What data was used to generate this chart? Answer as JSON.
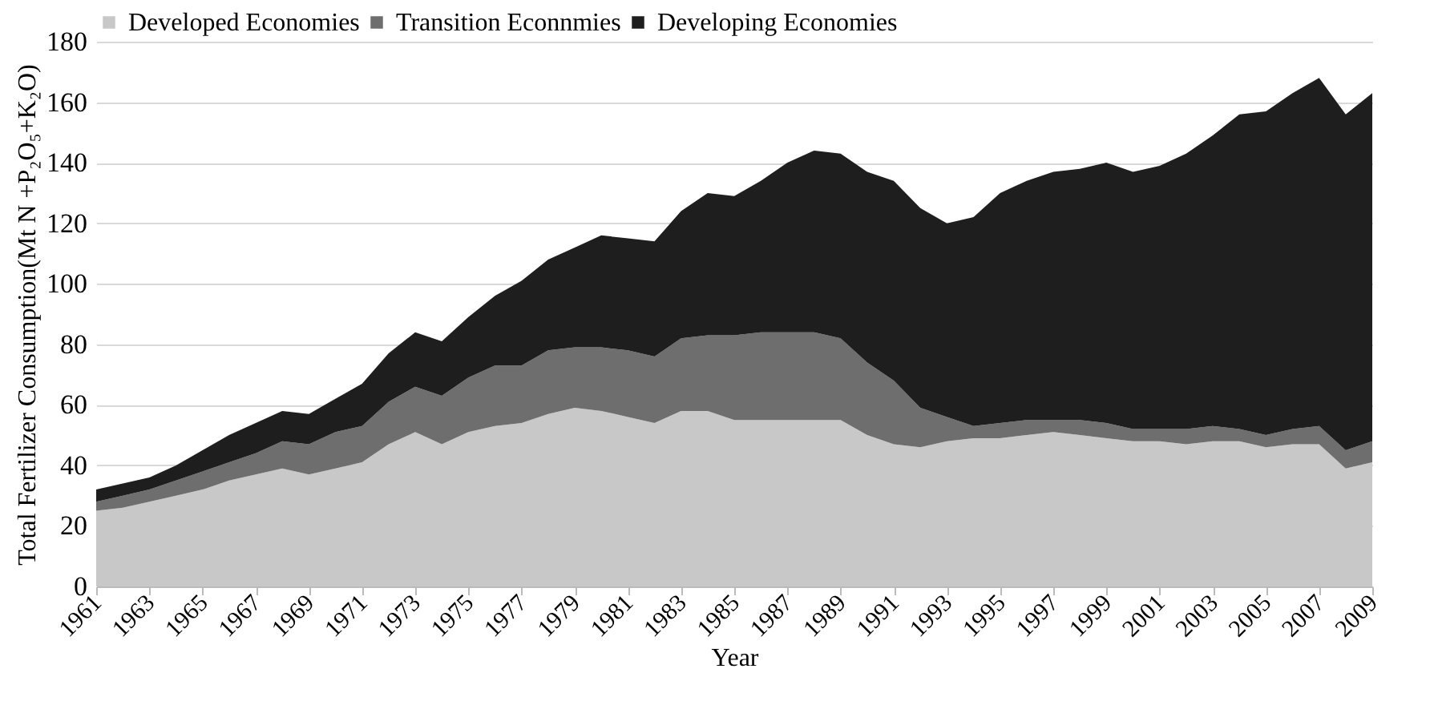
{
  "chart_data": {
    "type": "area",
    "stacked": true,
    "xlabel": "Year",
    "ylabel": "Total Fertilizer Consumption(Mt N +P₂O₅+K₂O)",
    "x": [
      1961,
      1962,
      1963,
      1964,
      1965,
      1966,
      1967,
      1968,
      1969,
      1970,
      1971,
      1972,
      1973,
      1974,
      1975,
      1976,
      1977,
      1978,
      1979,
      1980,
      1981,
      1982,
      1983,
      1984,
      1985,
      1986,
      1987,
      1988,
      1989,
      1990,
      1991,
      1992,
      1993,
      1994,
      1995,
      1996,
      1997,
      1998,
      1999,
      2000,
      2001,
      2002,
      2003,
      2004,
      2005,
      2006,
      2007,
      2008,
      2009
    ],
    "series": [
      {
        "name": "Developed Economies",
        "color": "#c8c8c8",
        "values": [
          25,
          26,
          28,
          30,
          32,
          35,
          37,
          39,
          37,
          39,
          41,
          47,
          51,
          47,
          51,
          53,
          54,
          57,
          59,
          58,
          56,
          54,
          58,
          58,
          55,
          55,
          55,
          55,
          55,
          50,
          47,
          46,
          48,
          49,
          49,
          50,
          51,
          50,
          49,
          48,
          48,
          47,
          48,
          48,
          46,
          47,
          47,
          39,
          41
        ]
      },
      {
        "name": "Transition Econnmies",
        "color": "#6e6e6e",
        "values": [
          3,
          4,
          4,
          5,
          6,
          6,
          7,
          9,
          10,
          12,
          12,
          14,
          15,
          16,
          18,
          20,
          19,
          21,
          20,
          21,
          22,
          22,
          24,
          25,
          28,
          29,
          29,
          29,
          27,
          24,
          21,
          13,
          8,
          4,
          5,
          5,
          4,
          5,
          5,
          4,
          4,
          5,
          5,
          4,
          4,
          5,
          6,
          6,
          7
        ]
      },
      {
        "name": "Developing Economies",
        "color": "#1e1e1e",
        "values": [
          4,
          4,
          4,
          5,
          7,
          9,
          10,
          10,
          10,
          11,
          14,
          16,
          18,
          18,
          20,
          23,
          28,
          30,
          33,
          37,
          37,
          38,
          42,
          47,
          46,
          50,
          56,
          60,
          61,
          63,
          66,
          66,
          64,
          69,
          76,
          79,
          82,
          83,
          86,
          85,
          87,
          91,
          96,
          104,
          107,
          111,
          115,
          111,
          115
        ]
      }
    ],
    "xlim": [
      1961,
      2009
    ],
    "xticks": [
      1961,
      1963,
      1965,
      1967,
      1969,
      1971,
      1973,
      1975,
      1977,
      1979,
      1981,
      1983,
      1985,
      1987,
      1989,
      1991,
      1993,
      1995,
      1997,
      1999,
      2001,
      2003,
      2005,
      2007,
      2009
    ],
    "ylim": [
      0,
      180
    ],
    "yticks": [
      0,
      20,
      40,
      60,
      80,
      100,
      120,
      140,
      160,
      180
    ],
    "grid": "y",
    "legend": "top"
  }
}
